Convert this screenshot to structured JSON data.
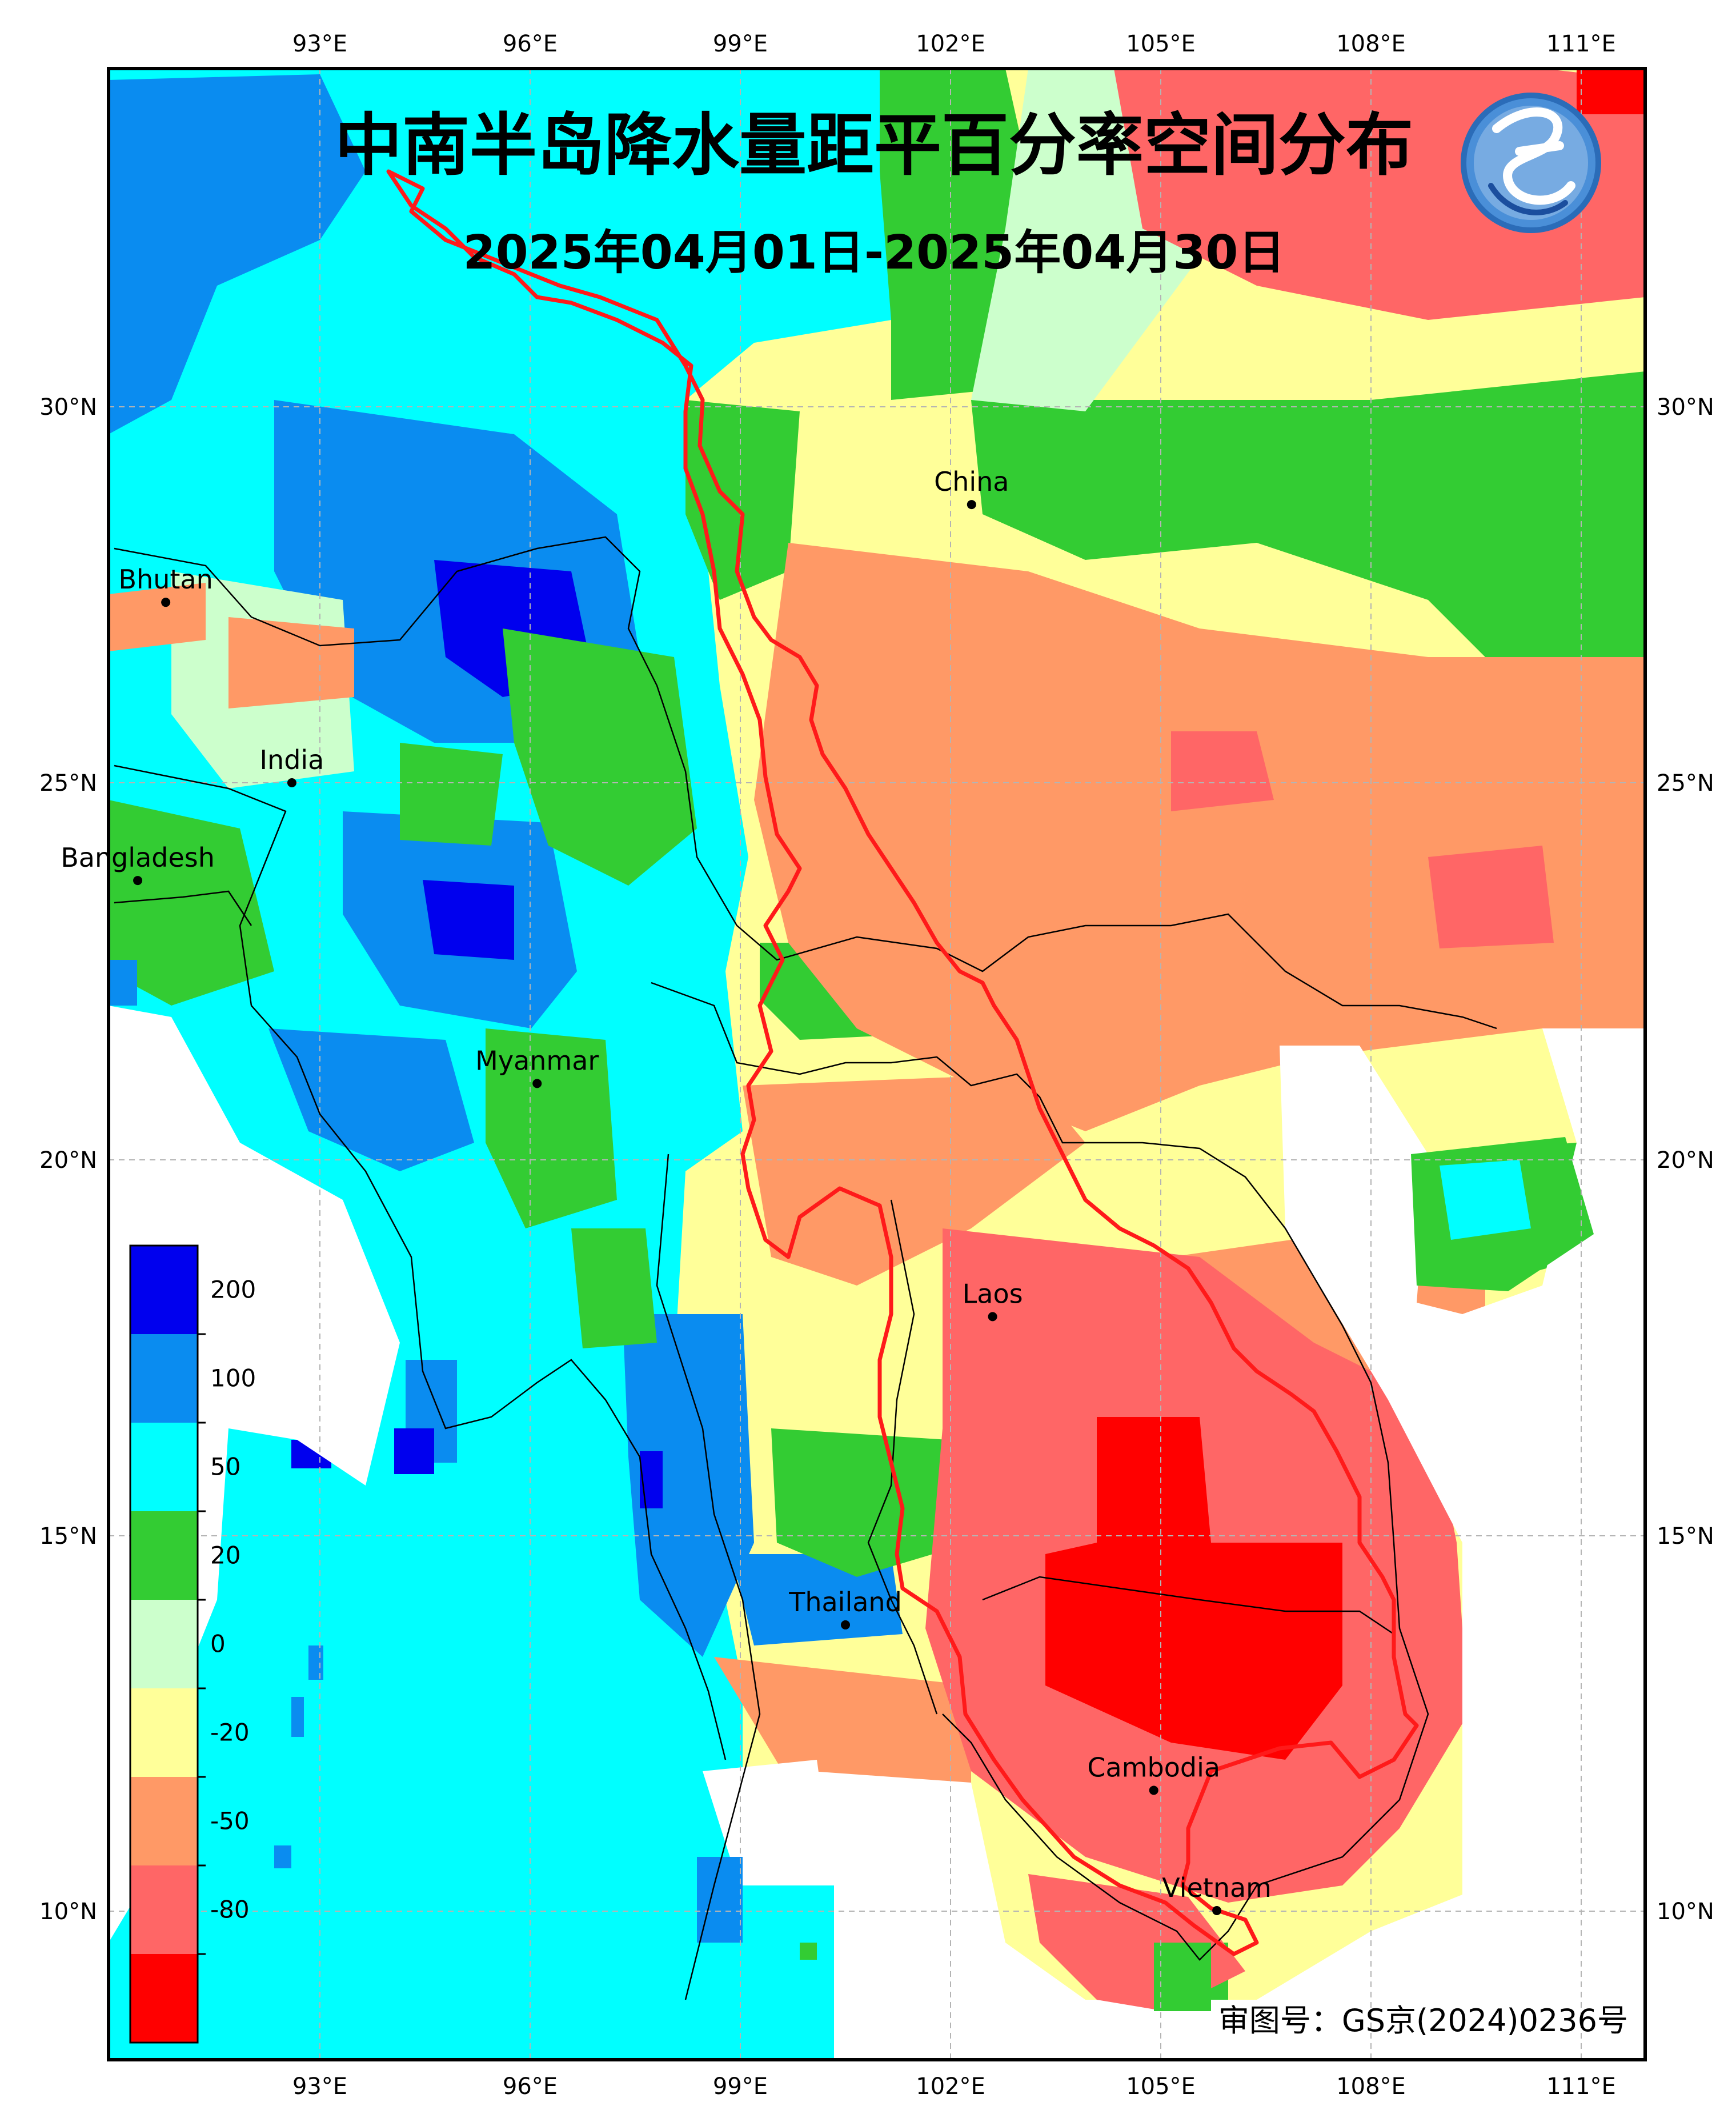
{
  "map": {
    "title": "中南半岛降水量距平百分率空间分布",
    "subtitle": "2025年04月01日-2025年04月30日",
    "review_number": "审图号：GS京(2024)0236号",
    "logo_icon": "cma-logo-icon",
    "lon_ticks": [
      "93°E",
      "96°E",
      "99°E",
      "102°E",
      "105°E",
      "108°E",
      "111°E"
    ],
    "lat_ticks": [
      "30°N",
      "25°N",
      "20°N",
      "15°N",
      "10°N"
    ],
    "places": [
      {
        "name": "China",
        "lon": 102.3,
        "lat": 28.7
      },
      {
        "name": "Bhutan",
        "lon": 90.8,
        "lat": 27.4
      },
      {
        "name": "India",
        "lon": 92.6,
        "lat": 25.0
      },
      {
        "name": "Bangladesh",
        "lon": 90.4,
        "lat": 23.7
      },
      {
        "name": "Myanmar",
        "lon": 96.1,
        "lat": 21.0
      },
      {
        "name": "Laos",
        "lon": 102.6,
        "lat": 17.9
      },
      {
        "name": "Thailand",
        "lon": 100.5,
        "lat": 13.8
      },
      {
        "name": "Cambodia",
        "lon": 104.9,
        "lat": 11.6
      },
      {
        "name": "Vietnam",
        "lon": 105.8,
        "lat": 10.0
      }
    ],
    "colorbar": {
      "ticks": [
        "200",
        "100",
        "50",
        "20",
        "0",
        "-20",
        "-50",
        "-80"
      ],
      "colors": [
        "#0000ee",
        "#0a8cf0",
        "#00ffff",
        "#33cc33",
        "#ccffcc",
        "#ffff99",
        "#ff9966",
        "#ff6666",
        "#ff0000"
      ]
    },
    "colors": {
      "frame": "#000000",
      "basin_outline": "#ff1a1a",
      "grid": "#b4b4b4"
    }
  }
}
